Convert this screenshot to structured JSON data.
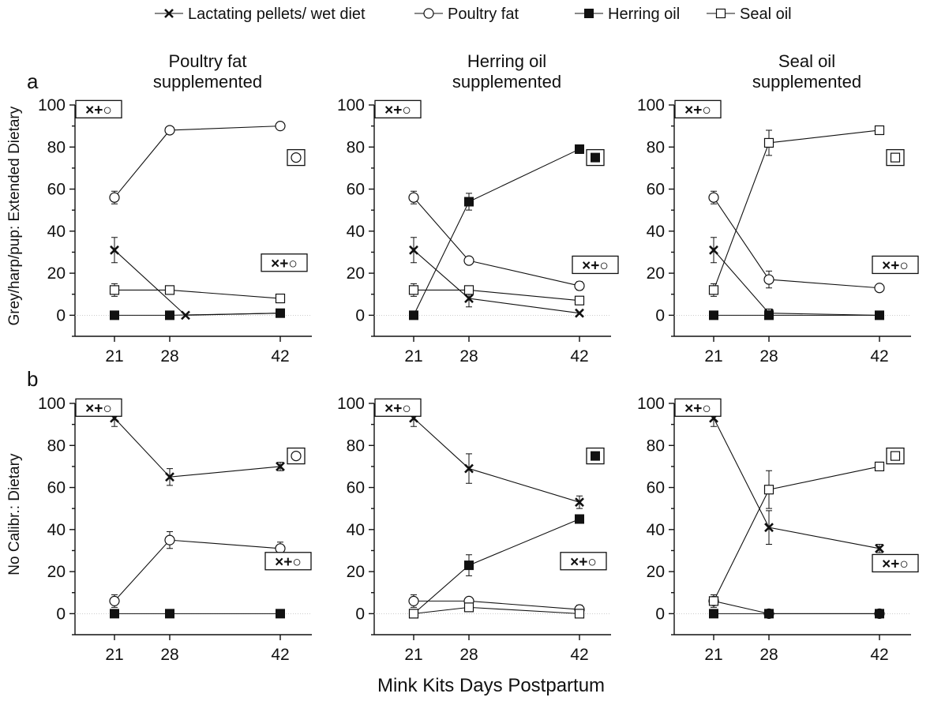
{
  "legend": [
    {
      "key": "lactating",
      "label": "Lactating pellets/ wet diet",
      "marker": "x"
    },
    {
      "key": "poultry",
      "label": "Poultry fat",
      "marker": "open-circle"
    },
    {
      "key": "herring",
      "label": "Herring oil",
      "marker": "filled-square"
    },
    {
      "key": "seal",
      "label": "Seal oil",
      "marker": "open-square"
    }
  ],
  "x_axis_label": "Mink Kits Days Postpartum",
  "row_labels": [
    "a",
    "b"
  ],
  "y_axis_labels": [
    "Grey/harp/pup: Extended Dietary",
    "No Calibr.: Dietary"
  ],
  "column_titles": [
    [
      "Poultry fat",
      "supplemented"
    ],
    [
      "Herring oil",
      "supplemented"
    ],
    [
      "Seal oil",
      "supplemented"
    ]
  ],
  "key_box_text": "×+○",
  "chart_data": [
    {
      "type": "line",
      "row": "a",
      "col": 0,
      "x": [
        21,
        28,
        42
      ],
      "xlim": [
        16,
        46
      ],
      "ylim": [
        -10,
        100
      ],
      "xticks": [
        21,
        28,
        42
      ],
      "yticks": [
        0,
        20,
        40,
        60,
        80,
        100
      ],
      "series": [
        {
          "name": "Lactating pellets/ wet diet",
          "marker": "x",
          "y": [
            31,
            0,
            1
          ],
          "err": [
            6,
            0,
            0
          ],
          "x": [
            21,
            30,
            42
          ]
        },
        {
          "name": "Poultry fat",
          "marker": "open-circle",
          "y": [
            56,
            88,
            90
          ],
          "err": [
            3,
            0,
            0
          ]
        },
        {
          "name": "Herring oil",
          "marker": "filled-square",
          "y": [
            0,
            0,
            1
          ],
          "err": [
            0,
            0,
            0
          ]
        },
        {
          "name": "Seal oil",
          "marker": "open-square",
          "y": [
            12,
            12,
            8
          ],
          "err": [
            3,
            0,
            0
          ]
        }
      ],
      "annotations": [
        {
          "kind": "key",
          "x": 19,
          "y": 98
        },
        {
          "kind": "key",
          "x": 42.5,
          "y": 25
        },
        {
          "kind": "marker",
          "marker": "open-circle",
          "x": 44,
          "y": 75
        }
      ]
    },
    {
      "type": "line",
      "row": "a",
      "col": 1,
      "x": [
        21,
        28,
        42
      ],
      "xlim": [
        16,
        46
      ],
      "ylim": [
        -10,
        100
      ],
      "xticks": [
        21,
        28,
        42
      ],
      "yticks": [
        0,
        20,
        40,
        60,
        80,
        100
      ],
      "series": [
        {
          "name": "Lactating pellets/ wet diet",
          "marker": "x",
          "y": [
            31,
            8,
            1
          ],
          "err": [
            6,
            4,
            0
          ]
        },
        {
          "name": "Poultry fat",
          "marker": "open-circle",
          "y": [
            56,
            26,
            14
          ],
          "err": [
            3,
            0,
            2
          ]
        },
        {
          "name": "Herring oil",
          "marker": "filled-square",
          "y": [
            0,
            54,
            79
          ],
          "err": [
            0,
            4,
            2
          ]
        },
        {
          "name": "Seal oil",
          "marker": "open-square",
          "y": [
            12,
            12,
            7
          ],
          "err": [
            3,
            2,
            0
          ]
        }
      ],
      "annotations": [
        {
          "kind": "key",
          "x": 19,
          "y": 98
        },
        {
          "kind": "key",
          "x": 44,
          "y": 24
        },
        {
          "kind": "marker",
          "marker": "filled-square",
          "x": 44,
          "y": 75
        }
      ]
    },
    {
      "type": "line",
      "row": "a",
      "col": 2,
      "x": [
        21,
        28,
        42
      ],
      "xlim": [
        16,
        46
      ],
      "ylim": [
        -10,
        100
      ],
      "xticks": [
        21,
        28,
        42
      ],
      "yticks": [
        0,
        20,
        40,
        60,
        80,
        100
      ],
      "series": [
        {
          "name": "Lactating pellets/ wet diet",
          "marker": "x",
          "y": [
            31,
            1,
            0
          ],
          "err": [
            6,
            2,
            0
          ]
        },
        {
          "name": "Poultry fat",
          "marker": "open-circle",
          "y": [
            56,
            17,
            13
          ],
          "err": [
            3,
            4,
            0
          ]
        },
        {
          "name": "Herring oil",
          "marker": "filled-square",
          "y": [
            0,
            0,
            0
          ],
          "err": [
            0,
            0,
            0
          ]
        },
        {
          "name": "Seal oil",
          "marker": "open-square",
          "y": [
            12,
            82,
            88
          ],
          "err": [
            3,
            6,
            0
          ]
        }
      ],
      "annotations": [
        {
          "kind": "key",
          "x": 19,
          "y": 98
        },
        {
          "kind": "key",
          "x": 44,
          "y": 24
        },
        {
          "kind": "marker",
          "marker": "open-square",
          "x": 44,
          "y": 75
        }
      ]
    },
    {
      "type": "line",
      "row": "b",
      "col": 0,
      "x": [
        21,
        28,
        42
      ],
      "xlim": [
        16,
        46
      ],
      "ylim": [
        -10,
        100
      ],
      "xticks": [
        21,
        28,
        42
      ],
      "yticks": [
        0,
        20,
        40,
        60,
        80,
        100
      ],
      "series": [
        {
          "name": "Lactating pellets/ wet diet",
          "marker": "x",
          "y": [
            93,
            65,
            70
          ],
          "err": [
            4,
            4,
            2
          ]
        },
        {
          "name": "Poultry fat",
          "marker": "open-circle",
          "y": [
            6,
            35,
            31
          ],
          "err": [
            3,
            4,
            3
          ]
        },
        {
          "name": "Herring oil",
          "marker": "filled-square",
          "y": [
            0,
            0,
            0
          ],
          "err": [
            0,
            0,
            0
          ]
        }
      ],
      "annotations": [
        {
          "kind": "key",
          "x": 19,
          "y": 98
        },
        {
          "kind": "key",
          "x": 43,
          "y": 25
        },
        {
          "kind": "marker",
          "marker": "open-circle",
          "x": 44,
          "y": 75
        }
      ]
    },
    {
      "type": "line",
      "row": "b",
      "col": 1,
      "x": [
        21,
        28,
        42
      ],
      "xlim": [
        16,
        46
      ],
      "ylim": [
        -10,
        100
      ],
      "xticks": [
        21,
        28,
        42
      ],
      "yticks": [
        0,
        20,
        40,
        60,
        80,
        100
      ],
      "series": [
        {
          "name": "Lactating pellets/ wet diet",
          "marker": "x",
          "y": [
            93,
            69,
            53
          ],
          "err": [
            4,
            7,
            3
          ]
        },
        {
          "name": "Poultry fat",
          "marker": "open-circle",
          "y": [
            6,
            6,
            2
          ],
          "err": [
            3,
            0,
            2
          ]
        },
        {
          "name": "Herring oil",
          "marker": "filled-square",
          "y": [
            0,
            23,
            45
          ],
          "err": [
            0,
            5,
            2
          ]
        },
        {
          "name": "Seal oil",
          "marker": "open-square",
          "y": [
            0,
            3,
            0
          ],
          "err": [
            0,
            1,
            0
          ]
        }
      ],
      "annotations": [
        {
          "kind": "key",
          "x": 19,
          "y": 98
        },
        {
          "kind": "key",
          "x": 42.5,
          "y": 25
        },
        {
          "kind": "marker",
          "marker": "filled-square",
          "x": 44,
          "y": 75
        }
      ]
    },
    {
      "type": "line",
      "row": "b",
      "col": 2,
      "x": [
        21,
        28,
        42
      ],
      "xlim": [
        16,
        46
      ],
      "ylim": [
        -10,
        100
      ],
      "xticks": [
        21,
        28,
        42
      ],
      "yticks": [
        0,
        20,
        40,
        60,
        80,
        100
      ],
      "series": [
        {
          "name": "Lactating pellets/ wet diet",
          "marker": "x",
          "y": [
            93,
            41,
            31
          ],
          "err": [
            4,
            8,
            2
          ]
        },
        {
          "name": "Poultry fat",
          "marker": "open-circle",
          "y": [
            6,
            0,
            0
          ],
          "err": [
            3,
            0,
            0
          ]
        },
        {
          "name": "Herring oil",
          "marker": "filled-square",
          "y": [
            0,
            0,
            0
          ],
          "err": [
            0,
            0,
            0
          ]
        },
        {
          "name": "Seal oil",
          "marker": "open-square",
          "y": [
            6,
            59,
            70
          ],
          "err": [
            0,
            9,
            2
          ]
        }
      ],
      "annotations": [
        {
          "kind": "key",
          "x": 19,
          "y": 98
        },
        {
          "kind": "key",
          "x": 44,
          "y": 24
        },
        {
          "kind": "marker",
          "marker": "open-square",
          "x": 44,
          "y": 75
        }
      ]
    }
  ]
}
